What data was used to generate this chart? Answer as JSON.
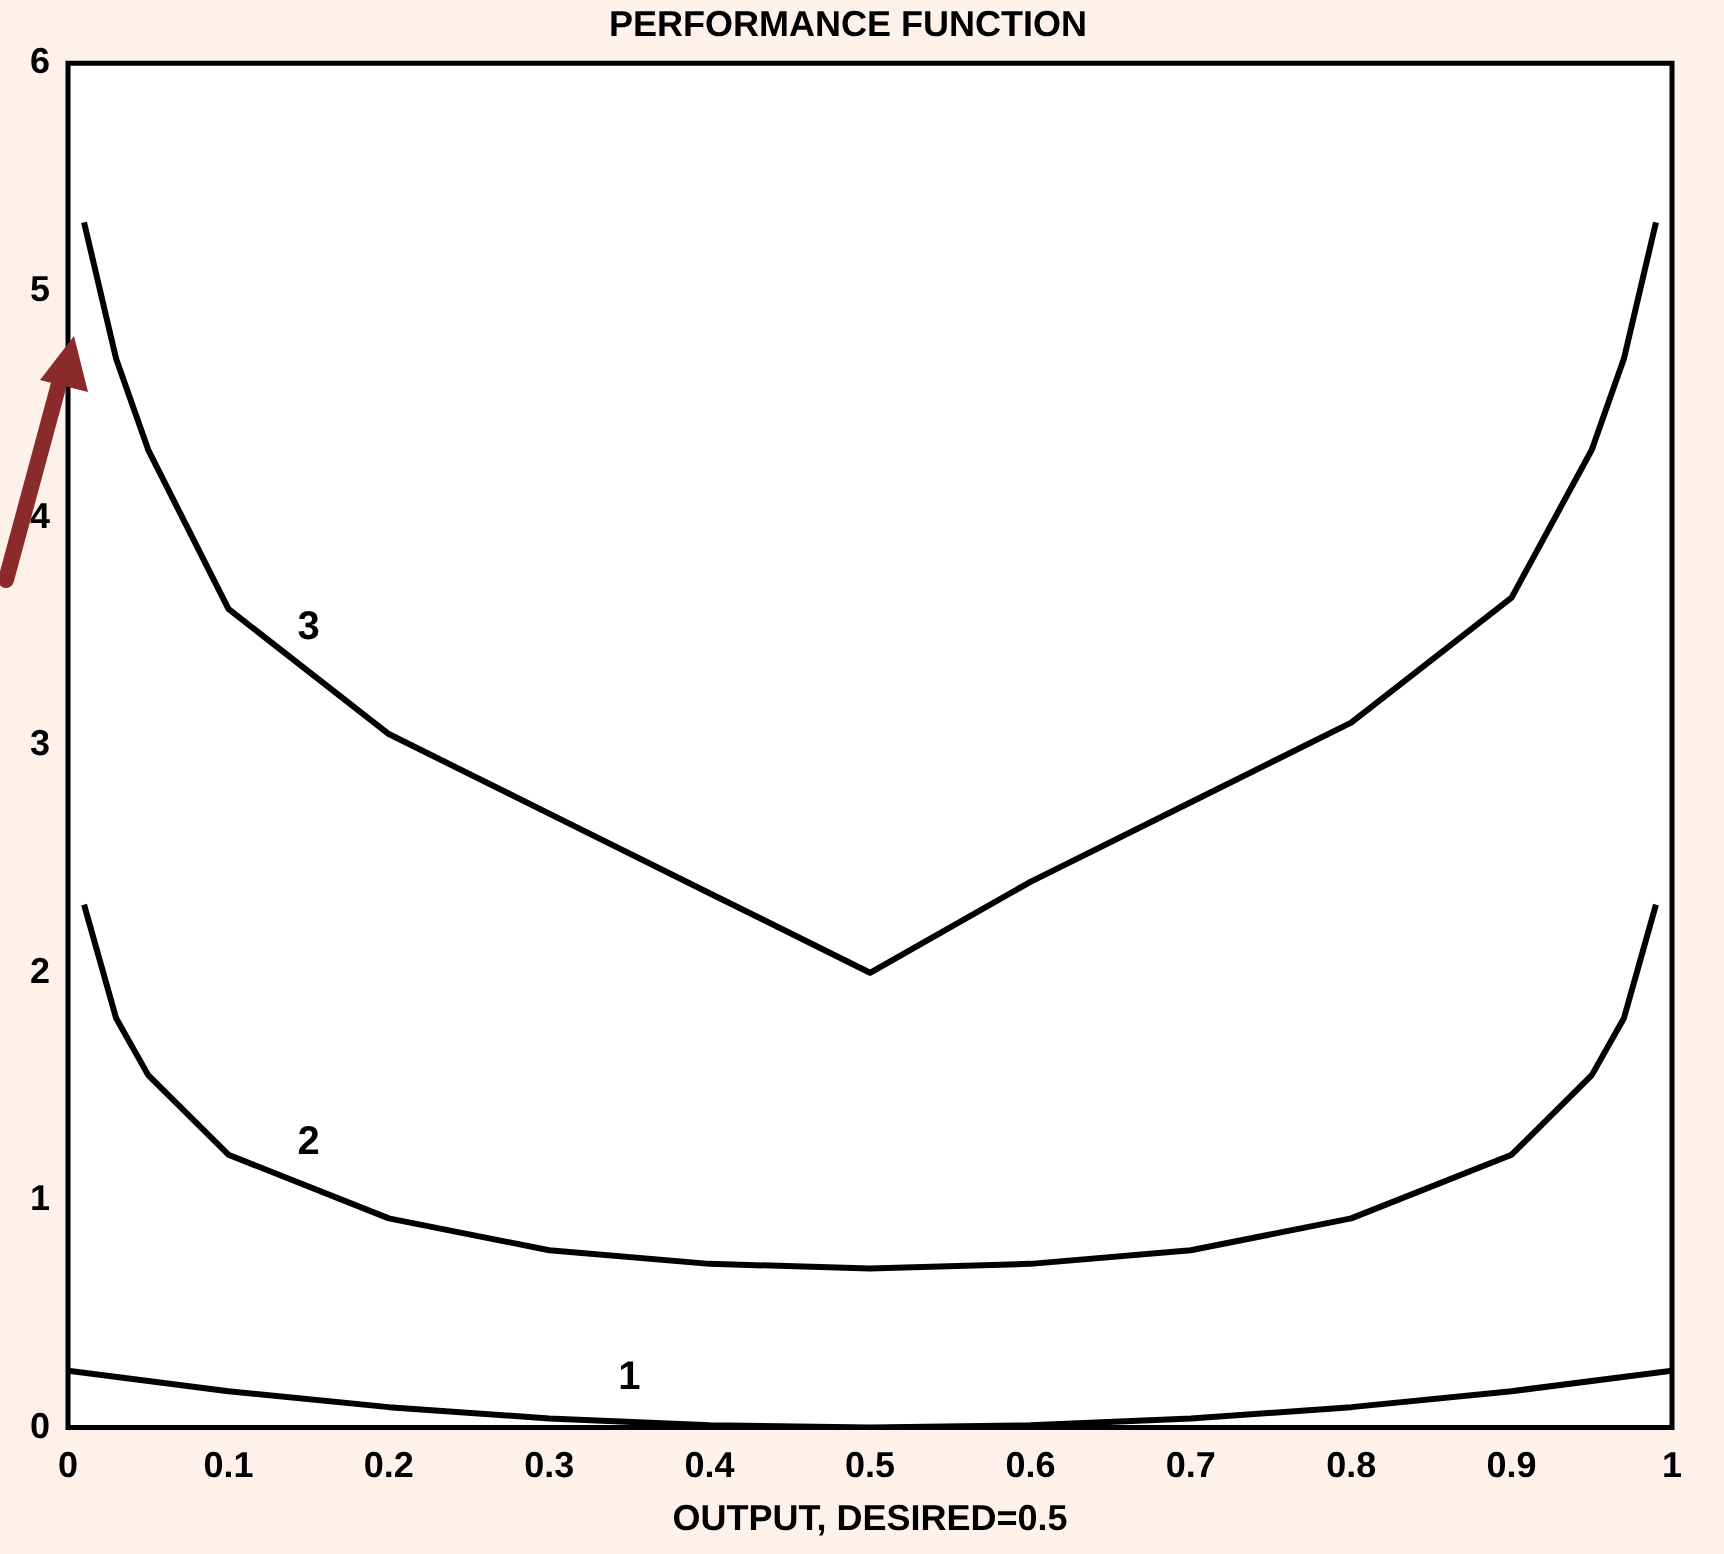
{
  "chart_data": {
    "type": "line",
    "title": "PERFORMANCE FUNCTION",
    "xlabel": "OUTPUT, DESIRED=0.5",
    "xlim": [
      0,
      1
    ],
    "ylim": [
      0,
      6
    ],
    "xticks": [
      0,
      0.1,
      0.2,
      0.3,
      0.4,
      0.5,
      0.6,
      0.7,
      0.8,
      0.9,
      1
    ],
    "yticks": [
      0,
      1,
      2,
      3,
      4,
      5,
      6
    ],
    "grid": false,
    "legend": false,
    "marker": "none",
    "line_style": "solid",
    "series": [
      {
        "color": "#000000",
        "x": [
          0,
          0.1,
          0.2,
          0.3,
          0.4,
          0.5,
          0.6,
          0.7,
          0.8,
          0.9,
          1
        ],
        "values": [
          0.25,
          0.16,
          0.09,
          0.04,
          0.01,
          0,
          0.01,
          0.04,
          0.09,
          0.16,
          0.25
        ]
      },
      {
        "color": "#000000",
        "x": [
          0.01,
          0.03,
          0.05,
          0.1,
          0.2,
          0.3,
          0.4,
          0.5,
          0.6,
          0.7,
          0.8,
          0.9,
          0.95,
          0.97,
          0.99
        ],
        "values": [
          2.3,
          1.8,
          1.55,
          1.2,
          0.92,
          0.78,
          0.72,
          0.7,
          0.72,
          0.78,
          0.92,
          1.2,
          1.55,
          1.8,
          2.3
        ]
      },
      {
        "color": "#000000",
        "x": [
          0.01,
          0.03,
          0.05,
          0.1,
          0.2,
          0.3,
          0.4,
          0.5,
          0.6,
          0.7,
          0.8,
          0.9,
          0.95,
          0.97,
          0.99
        ],
        "values": [
          5.3,
          4.7,
          4.3,
          3.6,
          3.05,
          2.7,
          2.35,
          2.0,
          2.4,
          2.75,
          3.1,
          3.65,
          4.3,
          4.7,
          5.3
        ]
      }
    ],
    "annotations": [
      "1",
      "2",
      "3"
    ]
  }
}
